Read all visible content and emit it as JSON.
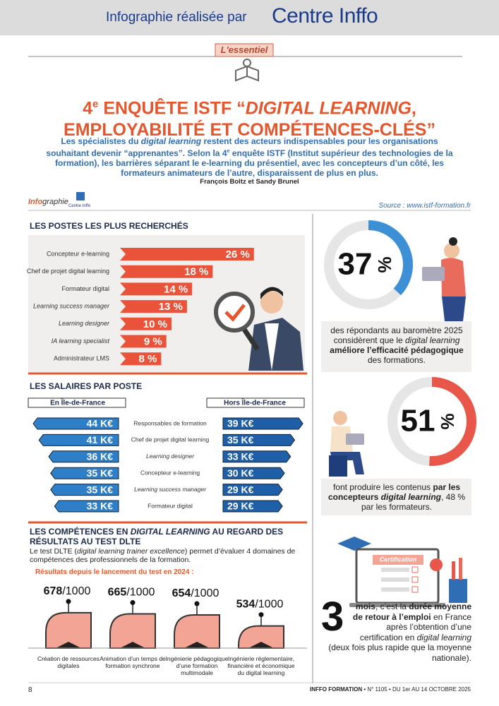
{
  "header": {
    "prefix": "Infographie réalisée par",
    "brand": "Centre Inffo"
  },
  "rubric": "L'essentiel",
  "title": [
    [
      {
        "text": "4"
      },
      {
        "text": "e",
        "style": "sup"
      },
      {
        "text": " ENQUÊTE ISTF “"
      },
      {
        "text": "DIGITAL LEARNING",
        "style": "italic"
      },
      {
        "text": ","
      }
    ],
    [
      {
        "text": "EMPLOYABILITÉ ET COMPÉTENCES-CLÉS”"
      }
    ]
  ],
  "intro": [
    {
      "text": "Les spécialistes du "
    },
    {
      "text": "digital learning",
      "style": "italic"
    },
    {
      "text": " restent des acteurs indispensables pour les organisations souhaitant devenir “apprenantes”. Selon la 4"
    },
    {
      "text": "e",
      "style": "sup"
    },
    {
      "text": " enquête ISTF (Institut supérieur des technologies de la formation), les barrières séparant le e-learning du présentiel, avec les concepteurs d’un côté, les formateurs animateurs de l’autre, disparaissent de plus en plus."
    }
  ],
  "authors": "François Boltz et Sandy Brunel",
  "tag": {
    "part1": "Info",
    "part2": "graphie",
    "logo": "Centre Inffo"
  },
  "source": "Source : www.istf-formation.fr",
  "chart_data": [
    {
      "type": "bar",
      "title": "LES POSTES LES PLUS RECHERCHÉS",
      "categories": [
        "Concepteur e-learning",
        "Chef de projet digital learning",
        "Formateur digital",
        "Learning success manager",
        "Learning designer",
        "IA learning specialist",
        "Administrateur LMS"
      ],
      "italic_categories": [
        false,
        false,
        false,
        true,
        true,
        true,
        false
      ],
      "values": [
        26,
        18,
        14,
        13,
        10,
        9,
        8
      ],
      "value_labels": [
        "26 %",
        "18 %",
        "14 %",
        "13 %",
        "10 %",
        "9 %",
        "8 %"
      ],
      "color": "#e8533a"
    },
    {
      "type": "diverging-bar",
      "title": "LES SALAIRES PAR POSTE",
      "categories": [
        "Responsables de formation",
        "Chef de projet digital learning",
        "Learning designer",
        "Concepteur e-learning",
        "Learning success manager",
        "Formateur digital"
      ],
      "italic_categories": [
        false,
        false,
        true,
        false,
        true,
        false
      ],
      "series": [
        {
          "name": "En Île-de-France",
          "color": "#2f7fc8",
          "values": [
            44,
            41,
            36,
            35,
            35,
            33
          ],
          "value_labels": [
            "44 K€",
            "41 K€",
            "36 K€",
            "35 K€",
            "35 K€",
            "33 K€"
          ]
        },
        {
          "name": "Hors Île-de-France",
          "color": "#1f5fa8",
          "values": [
            39,
            35,
            33,
            30,
            29,
            29
          ],
          "value_labels": [
            "39 K€",
            "35 K€",
            "33 K€",
            "30 K€",
            "29 K€",
            "29 K€"
          ]
        }
      ]
    },
    {
      "type": "score",
      "title": [
        {
          "text": "LES COMPÉTENCES EN "
        },
        {
          "text": "DIGITAL LEARNING",
          "style": "italic"
        },
        {
          "text": " AU REGARD DES RÉSULTATS AU TEST DLTE"
        }
      ],
      "subtitle": [
        {
          "text": "Le test DLTE ("
        },
        {
          "text": "digital learning trainer excellence",
          "style": "italic"
        },
        {
          "text": ") permet d’évaluer 4 domaines de compétences des professionnels de la formation."
        }
      ],
      "note": "Résultats depuis le lancement du test en 2024 :",
      "categories": [
        "Création de ressources digitales",
        "Animation d’un temps de formation synchrone",
        "Ingénierie pédagogique d’une formation multimodale",
        "Ingénierie réglementaire, financière et économique du digital learning"
      ],
      "values": [
        678,
        665,
        654,
        534
      ],
      "scale_label": "/1000",
      "ylim": [
        0,
        1000
      ],
      "color": "#f2a594"
    }
  ],
  "stats": [
    {
      "value": 37,
      "unit": "%",
      "color": "#3d8fd6",
      "text": [
        {
          "text": "des répondants au baromètre 2025 considèrent que le "
        },
        {
          "text": "digital learning",
          "style": "italic"
        },
        {
          "text": " améliore l’efficacité pédagogique",
          "style": "bold"
        },
        {
          "text": " des formations."
        }
      ]
    },
    {
      "value": 51,
      "unit": "%",
      "color": "#e8574a",
      "text": [
        {
          "text": "font produire les contenus "
        },
        {
          "text": "par les concepteurs ",
          "style": "bold"
        },
        {
          "text": "digital learning",
          "style": "bold-italic"
        },
        {
          "text": ", 48 % par les formateurs."
        }
      ]
    }
  ],
  "return": {
    "value": "3",
    "label": "Certification",
    "text": [
      {
        "text": "mois",
        "style": "bold"
      },
      {
        "text": ", c’est la "
      },
      {
        "text": "durée moyenne de retour à l’emploi",
        "style": "bold"
      },
      {
        "text": " en France après l’obtention d’une certification en "
      },
      {
        "text": "digital learning",
        "style": "italic"
      },
      {
        "text": " (deux fois plus rapide que la moyenne nationale)."
      }
    ]
  },
  "footer": {
    "page": "8",
    "publication": "INFFO FORMATION",
    "issue": " • N° 1105 • DU 1er AU 14 OCTOBRE 2025"
  }
}
